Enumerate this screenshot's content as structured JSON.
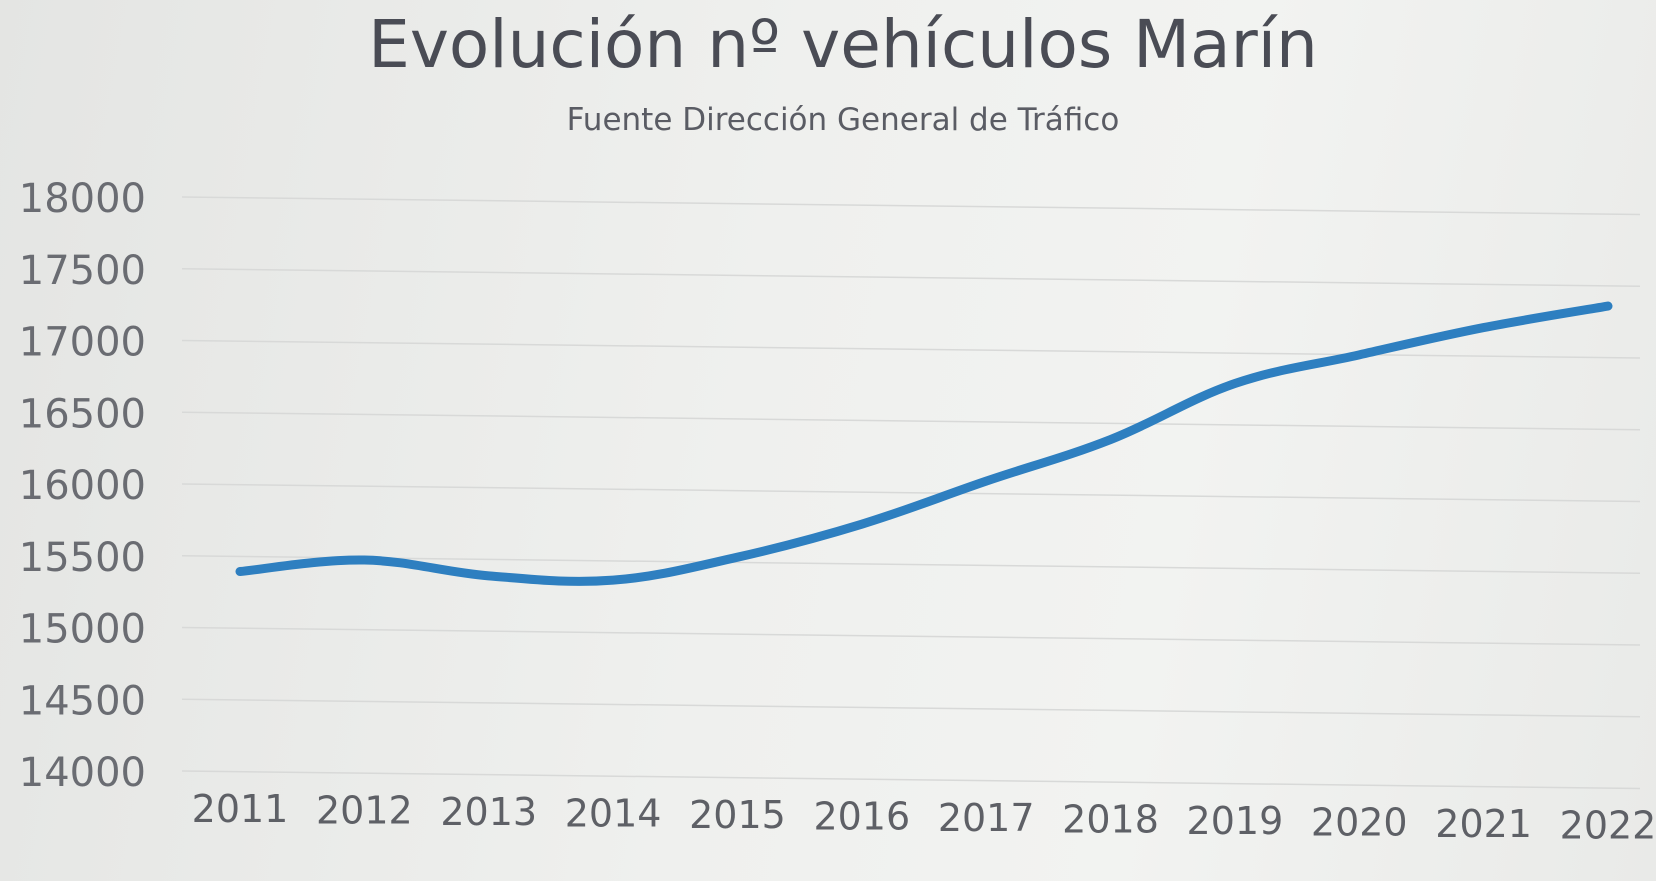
{
  "chart_data": {
    "type": "line",
    "title": "Evolución nº vehículos Marín",
    "subtitle": "Fuente Dirección General de Tráfico",
    "xlabel": "",
    "ylabel": "",
    "categories": [
      "2011",
      "2012",
      "2013",
      "2014",
      "2015",
      "2016",
      "2017",
      "2018",
      "2019",
      "2020",
      "2021",
      "2022"
    ],
    "series": [
      {
        "values": [
          15390,
          15470,
          15360,
          15330,
          15490,
          15720,
          16020,
          16310,
          16700,
          16900,
          17090,
          17240
        ],
        "color": "#2e7fc0"
      }
    ],
    "yticks": [
      "18000",
      "17500",
      "17000",
      "16500",
      "16000",
      "15500",
      "15000",
      "14500",
      "14000"
    ],
    "ylim": [
      14000,
      18000
    ],
    "grid": true,
    "legend": "none"
  }
}
